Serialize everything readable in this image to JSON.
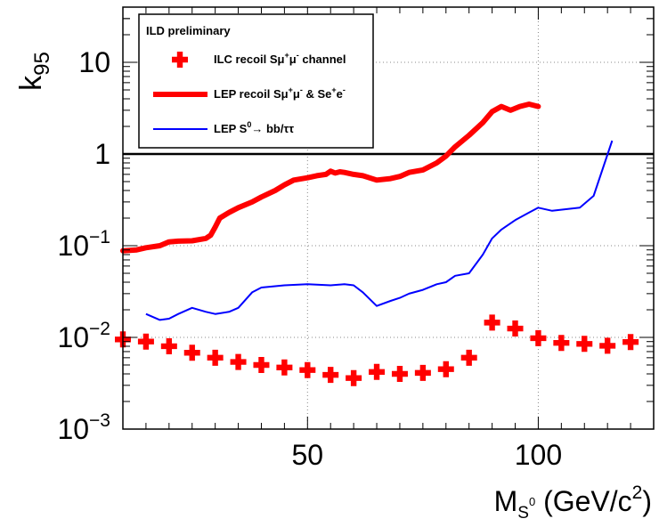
{
  "chart_data": {
    "type": "scatter",
    "xlim": [
      10,
      125
    ],
    "ylim": [
      0.001,
      40
    ],
    "yscale": "log",
    "grid": true,
    "legend_position": "top-left",
    "colors": {
      "ilc": "#ff0000",
      "lep_recoil": "#ff0000",
      "lep_s0": "#0000ff",
      "threshold": "#000000"
    },
    "xlabel": {
      "main": "M",
      "sub": "S",
      "sup": "0",
      "unit": " (GeV/c",
      "unit_sup": "2",
      "close": ")"
    },
    "ylabel": {
      "main": "k",
      "sub": "95"
    },
    "x_ticks": [
      {
        "value": 50,
        "label": "50"
      },
      {
        "value": 100,
        "label": "100"
      }
    ],
    "y_ticks": [
      {
        "value": 0.001,
        "base": "10",
        "exp": "−3"
      },
      {
        "value": 0.01,
        "base": "10",
        "exp": "−2"
      },
      {
        "value": 0.1,
        "base": "10",
        "exp": "−1"
      },
      {
        "value": 1,
        "base": "1",
        "exp": ""
      },
      {
        "value": 10,
        "base": "10",
        "exp": ""
      }
    ],
    "legend": {
      "title": "ILD preliminary",
      "entries": [
        {
          "parts": [
            {
              "t": "ILC recoil S"
            },
            {
              "t": "μ"
            },
            {
              "t": "+",
              "sup": true
            },
            {
              "t": "μ"
            },
            {
              "t": "-",
              "sup": true
            },
            {
              "t": " channel"
            }
          ]
        },
        {
          "parts": [
            {
              "t": "LEP recoil S"
            },
            {
              "t": "μ"
            },
            {
              "t": "+",
              "sup": true
            },
            {
              "t": "μ"
            },
            {
              "t": "-",
              "sup": true
            },
            {
              "t": " & Se"
            },
            {
              "t": "+",
              "sup": true
            },
            {
              "t": "e"
            },
            {
              "t": "-",
              "sup": true
            }
          ]
        },
        {
          "parts": [
            {
              "t": "LEP S"
            },
            {
              "t": "0",
              "sup": true
            },
            {
              "t": "→ bb/ττ"
            }
          ]
        }
      ]
    },
    "threshold": 1,
    "series": [
      {
        "name": "ILC recoil Sμ+μ- channel",
        "style": "cross",
        "x": [
          10,
          15,
          20,
          25,
          30,
          35,
          40,
          45,
          50,
          55,
          60,
          65,
          70,
          75,
          80,
          85,
          90,
          95,
          100,
          105,
          110,
          115,
          120
        ],
        "y": [
          0.0095,
          0.009,
          0.008,
          0.0068,
          0.006,
          0.0054,
          0.005,
          0.0047,
          0.0044,
          0.0039,
          0.0036,
          0.0042,
          0.004,
          0.0041,
          0.0045,
          0.006,
          0.0145,
          0.0125,
          0.0098,
          0.0087,
          0.0085,
          0.0081,
          0.0089
        ]
      },
      {
        "name": "LEP recoil Sμ+μ- & Se+e-",
        "style": "thick-line",
        "x": [
          10,
          13,
          15,
          18,
          20,
          22,
          25,
          28,
          29,
          30,
          31,
          33,
          35,
          38,
          40,
          43,
          45,
          47,
          50,
          52,
          54,
          55,
          56,
          57,
          58,
          60,
          62,
          65,
          68,
          70,
          72,
          75,
          78,
          80,
          82,
          85,
          88,
          90,
          92,
          94,
          96,
          98,
          100
        ],
        "y": [
          0.088,
          0.09,
          0.095,
          0.1,
          0.11,
          0.112,
          0.113,
          0.12,
          0.13,
          0.16,
          0.2,
          0.23,
          0.26,
          0.3,
          0.34,
          0.4,
          0.46,
          0.52,
          0.55,
          0.58,
          0.6,
          0.65,
          0.62,
          0.64,
          0.63,
          0.6,
          0.58,
          0.52,
          0.54,
          0.57,
          0.63,
          0.67,
          0.8,
          0.95,
          1.2,
          1.6,
          2.2,
          2.9,
          3.3,
          3.0,
          3.3,
          3.5,
          3.3
        ]
      },
      {
        "name": "LEP S0→ bb/ττ",
        "style": "thin-line",
        "x": [
          15,
          18,
          20,
          22,
          25,
          28,
          30,
          33,
          35,
          38,
          40,
          45,
          50,
          55,
          58,
          60,
          62,
          65,
          68,
          70,
          72,
          75,
          78,
          80,
          82,
          85,
          88,
          90,
          92,
          95,
          98,
          100,
          103,
          106,
          109,
          112,
          114,
          116
        ],
        "y": [
          0.018,
          0.0155,
          0.016,
          0.018,
          0.021,
          0.019,
          0.018,
          0.019,
          0.021,
          0.031,
          0.035,
          0.037,
          0.038,
          0.037,
          0.038,
          0.037,
          0.031,
          0.022,
          0.025,
          0.027,
          0.03,
          0.033,
          0.038,
          0.04,
          0.047,
          0.05,
          0.08,
          0.12,
          0.15,
          0.19,
          0.23,
          0.26,
          0.24,
          0.25,
          0.26,
          0.35,
          0.7,
          1.4
        ]
      }
    ]
  }
}
